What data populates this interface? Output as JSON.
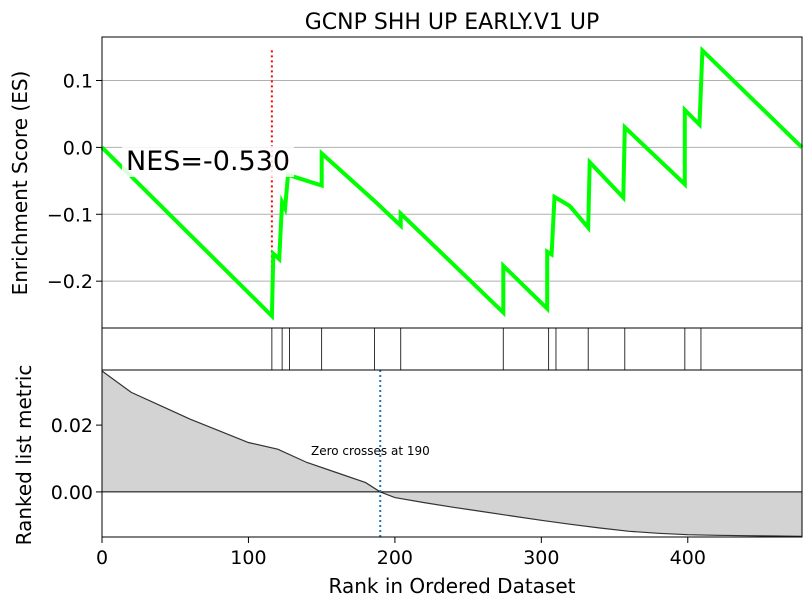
{
  "chart_data": [
    {
      "type": "line",
      "title": "GCNP SHH UP EARLY.V1 UP",
      "ylabel": "Enrichment Score (ES)",
      "xlim": [
        0,
        478
      ],
      "ylim": [
        -0.27,
        0.165
      ],
      "yticks": [
        -0.2,
        -0.1,
        0.0,
        0.1
      ],
      "ytick_labels": [
        "−0.2",
        "−0.1",
        "0.0",
        "0.1"
      ],
      "grid": true,
      "line_color": "#00ff00",
      "peak_marker": {
        "x": 116,
        "color": "#ff0000"
      },
      "annotation": "NES=-0.530",
      "series": [
        {
          "x": [
            0,
            116,
            117,
            121,
            123,
            125,
            127,
            150,
            150,
            186,
            186,
            204,
            204,
            274,
            274,
            304,
            304,
            307,
            309,
            319,
            320,
            332,
            333,
            356,
            357,
            398,
            398,
            408,
            410,
            478
          ],
          "values": [
            0.0,
            -0.252,
            -0.159,
            -0.167,
            -0.082,
            -0.091,
            -0.041,
            -0.057,
            -0.009,
            -0.08,
            -0.08,
            -0.117,
            -0.099,
            -0.247,
            -0.177,
            -0.241,
            -0.156,
            -0.16,
            -0.074,
            -0.087,
            -0.089,
            -0.12,
            -0.022,
            -0.075,
            0.03,
            -0.055,
            0.056,
            0.034,
            0.145,
            0.0
          ]
        }
      ]
    },
    {
      "type": "scatter",
      "title": "",
      "hits": [
        116,
        123,
        128,
        150,
        186,
        204,
        274,
        305,
        310,
        332,
        357,
        398,
        409
      ]
    },
    {
      "type": "area",
      "title": "",
      "xlabel": "Rank in Ordered Dataset",
      "ylabel": "Ranked list metric",
      "xlim": [
        0,
        478
      ],
      "ylim": [
        -0.0135,
        0.0365
      ],
      "xticks": [
        0,
        100,
        200,
        300,
        400
      ],
      "xtick_labels": [
        "0",
        "100",
        "200",
        "300",
        "400"
      ],
      "yticks": [
        0.0,
        0.02
      ],
      "ytick_labels": [
        "0.00",
        "0.02"
      ],
      "fill_color": "#d3d3d3",
      "zero_cross": 190,
      "zero_cross_color": "#1f77b4",
      "annotation": "Zero crosses at 190",
      "series": [
        {
          "x": [
            0,
            20,
            40,
            60,
            80,
            100,
            120,
            140,
            160,
            180,
            190,
            200,
            220,
            240,
            260,
            280,
            300,
            320,
            340,
            360,
            380,
            400,
            420,
            440,
            460,
            478
          ],
          "values": [
            0.0362,
            0.0298,
            0.0258,
            0.0218,
            0.0183,
            0.0148,
            0.0128,
            0.0088,
            0.0058,
            0.0028,
            0.0,
            -0.0017,
            -0.0032,
            -0.0046,
            -0.0059,
            -0.0072,
            -0.0085,
            -0.0097,
            -0.0108,
            -0.0118,
            -0.0124,
            -0.0128,
            -0.013,
            -0.0131,
            -0.0132,
            -0.0133
          ]
        }
      ]
    }
  ]
}
